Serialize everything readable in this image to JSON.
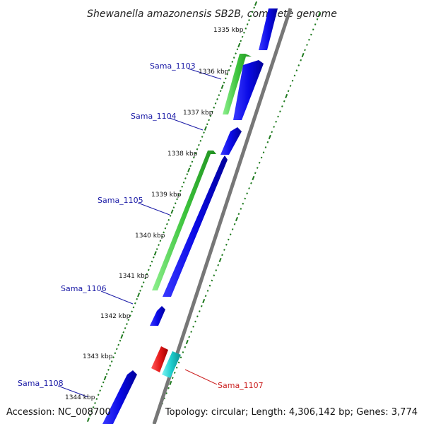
{
  "title": "Shewanella amazonensis SB2B, complete genome",
  "footer": {
    "accession": "Accession: NC_008700",
    "summary": "Topology: circular; Length: 4,306,142 bp; Genes: 3,774"
  },
  "ticks": [
    {
      "label": "1335 kbp"
    },
    {
      "label": "1336 kbp"
    },
    {
      "label": "1337 kbp"
    },
    {
      "label": "1338 kbp"
    },
    {
      "label": "1339 kbp"
    },
    {
      "label": "1340 kbp"
    },
    {
      "label": "1341 kbp"
    },
    {
      "label": "1342 kbp"
    },
    {
      "label": "1343 kbp"
    },
    {
      "label": "1344 kbp"
    }
  ],
  "gene_labels": [
    {
      "name": "Sama_1103",
      "color": "#1a1aa6"
    },
    {
      "name": "Sama_1104",
      "color": "#1a1aa6"
    },
    {
      "name": "Sama_1105",
      "color": "#1a1aa6"
    },
    {
      "name": "Sama_1106",
      "color": "#1a1aa6"
    },
    {
      "name": "Sama_1107",
      "color": "#cc2222"
    },
    {
      "name": "Sama_1108",
      "color": "#1a1aa6"
    }
  ],
  "feature_colors": {
    "cds_forward": "#0a0ae6",
    "cds_reverse": "#3ec43e",
    "rna": "#e61a1a",
    "other": "#1ccccc",
    "backbone": "#777777",
    "tick_marks": "#1f7a1f"
  }
}
